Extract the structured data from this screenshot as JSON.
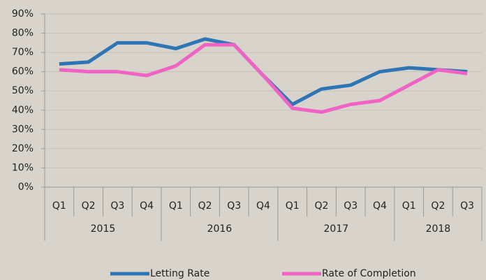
{
  "chart_data": {
    "type": "line",
    "groups": [
      {
        "label": "2015",
        "categories": [
          "Q1",
          "Q2",
          "Q3",
          "Q4"
        ]
      },
      {
        "label": "2016",
        "categories": [
          "Q1",
          "Q2",
          "Q3",
          "Q4"
        ]
      },
      {
        "label": "2017",
        "categories": [
          "Q1",
          "Q2",
          "Q3",
          "Q4"
        ]
      },
      {
        "label": "2018",
        "categories": [
          "Q1",
          "Q2",
          "Q3"
        ]
      }
    ],
    "series": [
      {
        "name": "Letting Rate",
        "color": "#2e75b6",
        "values": [
          64,
          65,
          75,
          75,
          72,
          77,
          74,
          58,
          43,
          51,
          53,
          60,
          62,
          61,
          60
        ]
      },
      {
        "name": "Rate of Completion",
        "color": "#f062c3",
        "values": [
          61,
          60,
          60,
          58,
          63,
          74,
          74,
          58,
          41,
          39,
          43,
          45,
          53,
          61,
          59
        ]
      }
    ],
    "ylim": [
      0,
      90
    ],
    "yticks": [
      {
        "value": 0,
        "label": "0%"
      },
      {
        "value": 10,
        "label": "10%"
      },
      {
        "value": 20,
        "label": "20%"
      },
      {
        "value": 30,
        "label": "30%"
      },
      {
        "value": 40,
        "label": "40%"
      },
      {
        "value": 50,
        "label": "50%"
      },
      {
        "value": 60,
        "label": "60%"
      },
      {
        "value": 70,
        "label": "70%"
      },
      {
        "value": 80,
        "label": "80%"
      },
      {
        "value": 90,
        "label": "90%"
      }
    ],
    "grid": true,
    "legend": "bottom"
  }
}
